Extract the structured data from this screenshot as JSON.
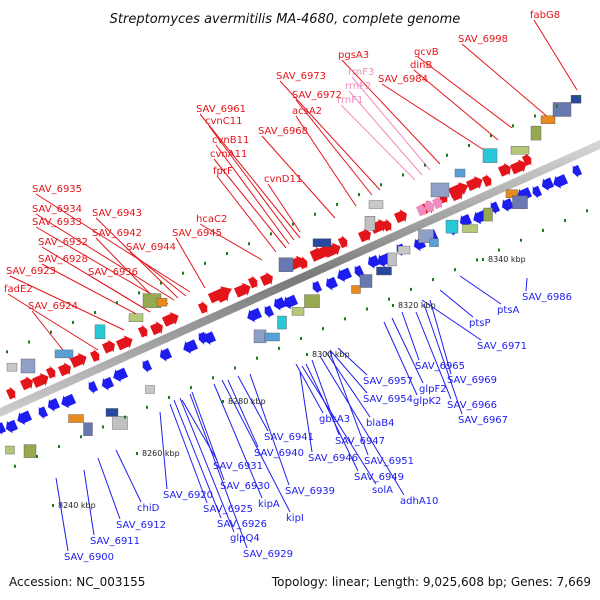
{
  "title": "Streptomyces avermitilis MA-4680, complete genome",
  "footer": {
    "accession": "Accession: NC_003155",
    "summary": "Topology: linear; Length: 9,025,608 bp; Genes: 7,669"
  },
  "colors": {
    "forward": "#e4141b",
    "reverse": "#1d1df0",
    "rrna": "#f08cbf",
    "backbone": "#8c8c8c",
    "tick": "#1f7a1f"
  },
  "ruler": [
    "8240 kbp",
    "8260 kbp",
    "8280 kbp",
    "8300 kbp",
    "8320 kbp",
    "8340 kbp"
  ],
  "top_labels": [
    {
      "text": "fabG8",
      "kind": "forward"
    },
    {
      "text": "SAV_6998",
      "kind": "forward"
    },
    {
      "text": "gcvB",
      "kind": "forward"
    },
    {
      "text": "dinB",
      "kind": "forward"
    },
    {
      "text": "SAV_6984",
      "kind": "forward"
    },
    {
      "text": "pgsA3",
      "kind": "forward"
    },
    {
      "text": "rrnF3",
      "kind": "rrna"
    },
    {
      "text": "rrnF2",
      "kind": "rrna"
    },
    {
      "text": "rrnF1",
      "kind": "rrna"
    },
    {
      "text": "SAV_6973",
      "kind": "forward"
    },
    {
      "text": "SAV_6972",
      "kind": "forward"
    },
    {
      "text": "acsA2",
      "kind": "forward"
    },
    {
      "text": "SAV_6968",
      "kind": "forward"
    },
    {
      "text": "SAV_6961",
      "kind": "forward"
    },
    {
      "text": "cvnC11",
      "kind": "forward"
    },
    {
      "text": "cvnB11",
      "kind": "forward"
    },
    {
      "text": "cvnA11",
      "kind": "forward"
    },
    {
      "text": "cvnD11",
      "kind": "forward"
    },
    {
      "text": "fprF",
      "kind": "forward"
    },
    {
      "text": "hcaC2",
      "kind": "forward"
    },
    {
      "text": "SAV_6935",
      "kind": "forward"
    },
    {
      "text": "SAV_6943",
      "kind": "forward"
    },
    {
      "text": "SAV_6934",
      "kind": "forward"
    },
    {
      "text": "SAV_6933",
      "kind": "forward"
    },
    {
      "text": "SAV_6942",
      "kind": "forward"
    },
    {
      "text": "SAV_6945",
      "kind": "forward"
    },
    {
      "text": "SAV_6932",
      "kind": "forward"
    },
    {
      "text": "SAV_6944",
      "kind": "forward"
    },
    {
      "text": "SAV_6928",
      "kind": "forward"
    },
    {
      "text": "SAV_6936",
      "kind": "forward"
    },
    {
      "text": "SAV_6923",
      "kind": "forward"
    },
    {
      "text": "fadE2",
      "kind": "forward"
    },
    {
      "text": "SAV_6924",
      "kind": "forward"
    }
  ],
  "bottom_labels": [
    {
      "text": "SAV_6986",
      "kind": "reverse"
    },
    {
      "text": "ptsA",
      "kind": "reverse"
    },
    {
      "text": "ptsP",
      "kind": "reverse"
    },
    {
      "text": "SAV_6971",
      "kind": "reverse"
    },
    {
      "text": "SAV_6965",
      "kind": "reverse"
    },
    {
      "text": "SAV_6969",
      "kind": "reverse"
    },
    {
      "text": "glpF2",
      "kind": "reverse"
    },
    {
      "text": "glpK2",
      "kind": "reverse"
    },
    {
      "text": "SAV_6966",
      "kind": "reverse"
    },
    {
      "text": "SAV_6967",
      "kind": "reverse"
    },
    {
      "text": "SAV_6957",
      "kind": "reverse"
    },
    {
      "text": "SAV_6954",
      "kind": "reverse"
    },
    {
      "text": "gbsA3",
      "kind": "reverse"
    },
    {
      "text": "blaB4",
      "kind": "reverse"
    },
    {
      "text": "SAV_6947",
      "kind": "reverse"
    },
    {
      "text": "SAV_6941",
      "kind": "reverse"
    },
    {
      "text": "SAV_6940",
      "kind": "reverse"
    },
    {
      "text": "SAV_6946",
      "kind": "reverse"
    },
    {
      "text": "SAV_6951",
      "kind": "reverse"
    },
    {
      "text": "SAV_6949",
      "kind": "reverse"
    },
    {
      "text": "solA",
      "kind": "reverse"
    },
    {
      "text": "adhA10",
      "kind": "reverse"
    },
    {
      "text": "SAV_6931",
      "kind": "reverse"
    },
    {
      "text": "SAV_6930",
      "kind": "reverse"
    },
    {
      "text": "SAV_6939",
      "kind": "reverse"
    },
    {
      "text": "kipA",
      "kind": "reverse"
    },
    {
      "text": "kipI",
      "kind": "reverse"
    },
    {
      "text": "SAV_6920",
      "kind": "reverse"
    },
    {
      "text": "SAV_6925",
      "kind": "reverse"
    },
    {
      "text": "SAV_6926",
      "kind": "reverse"
    },
    {
      "text": "glpQ4",
      "kind": "reverse"
    },
    {
      "text": "SAV_6929",
      "kind": "reverse"
    },
    {
      "text": "chiD",
      "kind": "reverse"
    },
    {
      "text": "SAV_6912",
      "kind": "reverse"
    },
    {
      "text": "SAV_6911",
      "kind": "reverse"
    },
    {
      "text": "SAV_6900",
      "kind": "reverse"
    }
  ]
}
